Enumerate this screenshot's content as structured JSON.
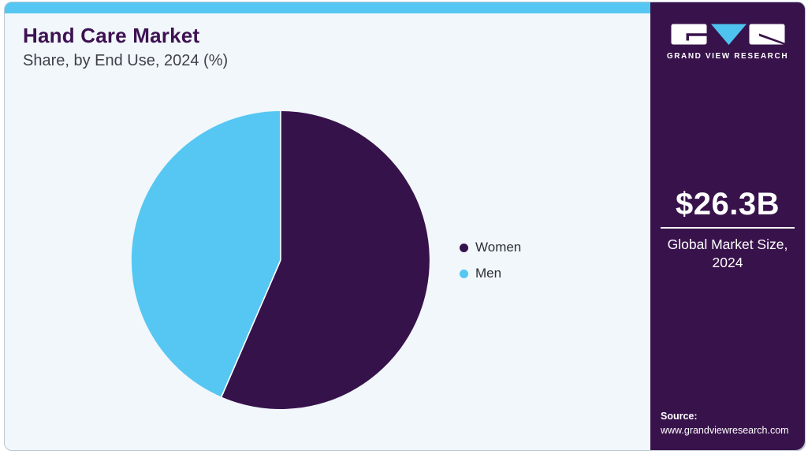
{
  "header": {
    "title": "Hand Care Market",
    "subtitle": "Share, by End Use, 2024 (%)"
  },
  "legend": {
    "items": [
      {
        "label": "Women",
        "color": "#36124b"
      },
      {
        "label": "Men",
        "color": "#56c7f2"
      }
    ]
  },
  "sidebar": {
    "wordmark": "GRAND VIEW RESEARCH",
    "market_size": {
      "value": "$26.3B",
      "label": "Global Market Size, 2024"
    },
    "source": {
      "label": "Source:",
      "url": "www.grandviewresearch.com"
    }
  },
  "chart_data": {
    "type": "pie",
    "title": "Hand Care Market Share, by End Use, 2024 (%)",
    "labels": [
      "Women",
      "Men"
    ],
    "values": [
      56.5,
      43.5
    ],
    "unit": "%",
    "colors": [
      "#36124b",
      "#56c7f2"
    ],
    "start_angle_deg": 0,
    "direction": "clockwise",
    "legend_position": "right",
    "data_labels_shown": false
  },
  "colors": {
    "accent_cyan": "#56c7f2",
    "brand_purple": "#38134b",
    "card_background": "#f1f7fa",
    "title_purple": "#3d1152",
    "separator": "#ffffff"
  }
}
